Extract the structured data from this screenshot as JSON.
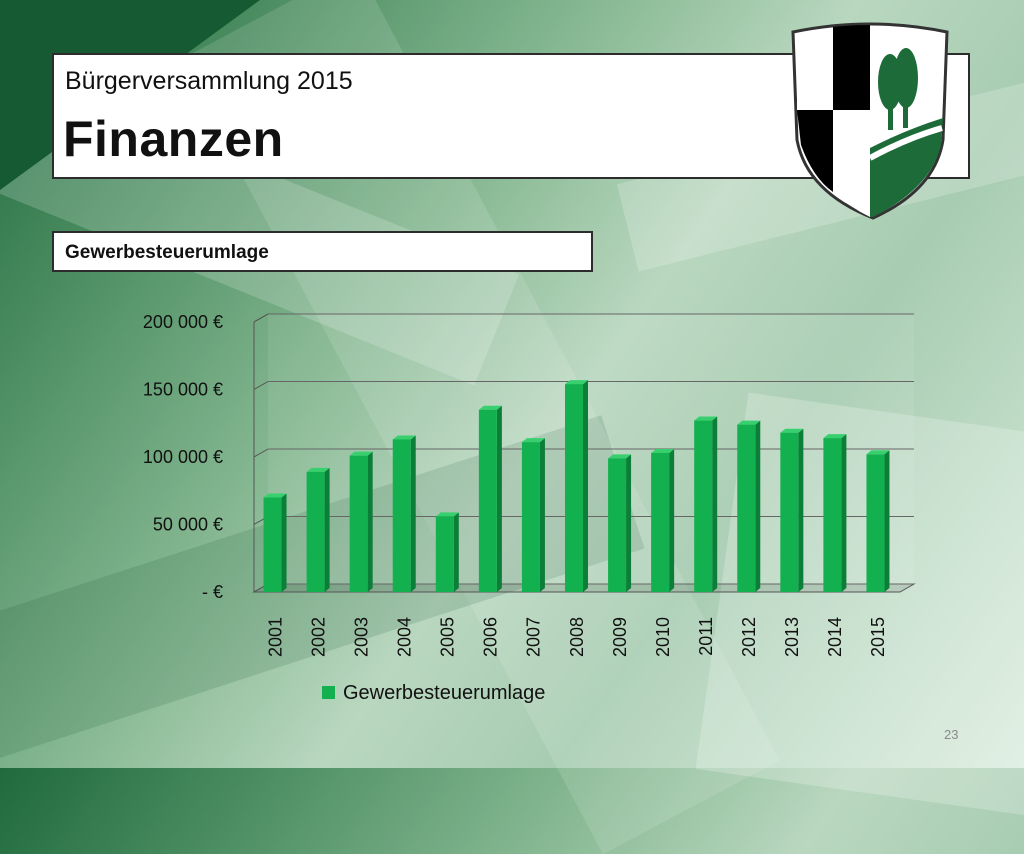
{
  "slide": {
    "subtitle": "Bürgerversammlung 2015",
    "title": "Finanzen",
    "section_label": "Gewerbesteuerumlage",
    "page_number": "23"
  },
  "colors": {
    "bar_front": "#13b04f",
    "bar_side": "#0b7f37",
    "bar_top": "#38d06f",
    "crest_green": "#1e6b3a",
    "crest_black": "#000000"
  },
  "chart_data": {
    "type": "bar",
    "categories": [
      "2001",
      "2002",
      "2003",
      "2004",
      "2005",
      "2006",
      "2007",
      "2008",
      "2009",
      "2010",
      "2011",
      "2012",
      "2013",
      "2014",
      "2015"
    ],
    "series": [
      {
        "name": "Gewerbesteuerumlage",
        "values": [
          70000,
          89000,
          101000,
          113000,
          56000,
          135000,
          111000,
          154000,
          99000,
          103000,
          127000,
          124000,
          118000,
          114000,
          102000
        ]
      }
    ],
    "ylim": [
      0,
      200000
    ],
    "yticks": [
      0,
      50000,
      100000,
      150000,
      200000
    ],
    "ytick_labels": [
      "- €",
      "50 000 €",
      "100 000 €",
      "150 000 €",
      "200 000 €"
    ],
    "grid": true,
    "legend_position": "bottom"
  }
}
